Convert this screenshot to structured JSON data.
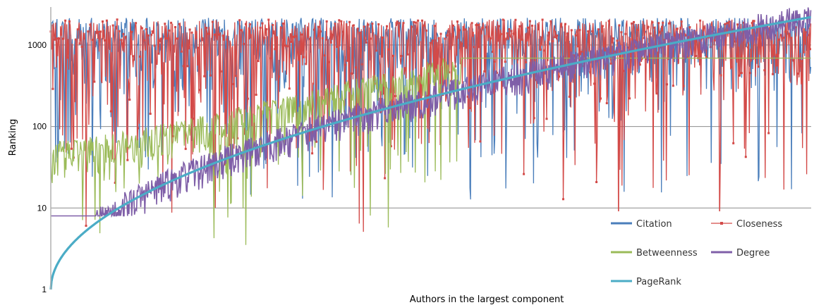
{
  "chart_data": {
    "type": "line",
    "title": "",
    "xlabel": "Authors in the largest component",
    "ylabel": "Ranking",
    "y_scale": "log",
    "ylim": [
      1,
      2300
    ],
    "y_ticks": [
      1,
      10,
      100,
      1000
    ],
    "y_tick_labels": [
      "1",
      "10",
      "100",
      "1000"
    ],
    "x_count": 2200,
    "grid": "horizontal",
    "legend_position": "bottom-right",
    "series": [
      {
        "name": "Citation",
        "color": "#4a7ebb",
        "style": "jagged",
        "cap": 0.78,
        "mode": "above",
        "min_floor": 12,
        "seed": 11
      },
      {
        "name": "Closeness",
        "color": "#d34a48",
        "style": "jagged-marker",
        "cap": 2050,
        "mode": "above",
        "min_floor": 3,
        "seed": 23
      },
      {
        "name": "Betweenness",
        "color": "#9bbb59",
        "style": "jagged-flat",
        "cap": 690,
        "mode": "below",
        "min_floor": 3,
        "flat_after": 0.54,
        "seed": 37
      },
      {
        "name": "Degree",
        "color": "#7f5fa8",
        "style": "band",
        "cap": 1.5,
        "mode": "above",
        "min_floor": 8,
        "seed": 53
      },
      {
        "name": "PageRank",
        "color": "#4bacc6",
        "style": "curve",
        "start": 1,
        "end": 2200
      }
    ],
    "legend": [
      "Citation",
      "Closeness",
      "Betweenness",
      "Degree",
      "PageRank"
    ]
  }
}
